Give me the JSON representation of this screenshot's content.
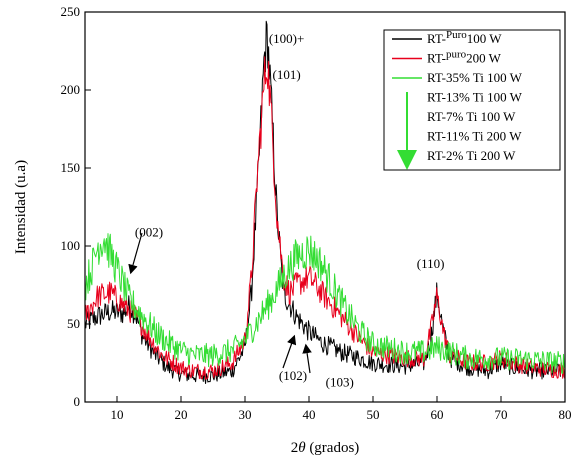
{
  "chart_data": {
    "type": "line",
    "xlabel_prefix": "2",
    "xlabel_theta": "θ",
    "xlabel_suffix": " (grados)",
    "ylabel": "Intensidad (u.a)",
    "xlim": [
      5,
      80
    ],
    "ylim": [
      0,
      250
    ],
    "xticks": [
      10,
      20,
      30,
      40,
      50,
      60,
      70,
      80
    ],
    "yticks": [
      0,
      50,
      100,
      150,
      200,
      250
    ],
    "grid": false,
    "legend_position": "top-right",
    "legend": [
      {
        "prefix": "RT-",
        "sup": "Puro",
        "suffix": "100 W",
        "color": "#000000"
      },
      {
        "prefix": "RT-",
        "sup": "puro",
        "suffix": "200 W",
        "color": "#e8001c"
      },
      {
        "prefix": "RT-35% Ti 100 W",
        "sup": "",
        "suffix": "",
        "color": "#33dd33"
      },
      {
        "prefix": "RT-13% Ti 100 W",
        "sup": "",
        "suffix": "",
        "color": "#33dd33"
      },
      {
        "prefix": "RT-7%   Ti 100 W",
        "sup": "",
        "suffix": "",
        "color": "#33dd33"
      },
      {
        "prefix": "RT-11% Ti 200 W",
        "sup": "",
        "suffix": "",
        "color": "#33dd33"
      },
      {
        "prefix": "RT-2%   Ti 200 W",
        "sup": "",
        "suffix": "",
        "color": "#33dd33"
      }
    ],
    "series": [
      {
        "color": "#000000",
        "noise": 7,
        "x": [
          5,
          7,
          9,
          11,
          12,
          13,
          14,
          16,
          18,
          20,
          22,
          25,
          28,
          30,
          31,
          32,
          33,
          33.5,
          34,
          35,
          36,
          38,
          40,
          42,
          45,
          48,
          50,
          55,
          58,
          59,
          60,
          61,
          62,
          65,
          68,
          70,
          72,
          75,
          80
        ],
        "y": [
          50,
          55,
          58,
          57,
          62,
          55,
          42,
          30,
          22,
          18,
          17,
          17,
          20,
          35,
          70,
          140,
          220,
          235,
          200,
          120,
          70,
          55,
          45,
          38,
          32,
          28,
          25,
          23,
          25,
          40,
          70,
          45,
          28,
          22,
          20,
          25,
          22,
          20,
          20
        ]
      },
      {
        "color": "#e8001c",
        "noise": 7,
        "x": [
          5,
          7,
          9,
          11,
          13,
          15,
          17,
          20,
          22,
          25,
          28,
          30,
          31,
          32,
          33,
          33.5,
          34,
          35,
          36,
          37,
          38,
          40,
          42,
          45,
          48,
          50,
          55,
          58,
          59,
          60,
          61,
          62,
          65,
          68,
          70,
          72,
          75,
          80
        ],
        "y": [
          55,
          68,
          70,
          62,
          55,
          42,
          30,
          22,
          20,
          20,
          25,
          40,
          80,
          150,
          205,
          220,
          190,
          120,
          80,
          70,
          75,
          80,
          70,
          55,
          40,
          32,
          28,
          28,
          45,
          68,
          45,
          30,
          25,
          25,
          28,
          25,
          22,
          20
        ]
      },
      {
        "color": "#33dd33",
        "noise": 9,
        "x": [
          5,
          6,
          7,
          8,
          9,
          10,
          11,
          12,
          14,
          16,
          18,
          20,
          22,
          25,
          28,
          30,
          32,
          34,
          36,
          38,
          40,
          42,
          44,
          46,
          48,
          50,
          55,
          58,
          60,
          62,
          65,
          70,
          75,
          80
        ],
        "y": [
          75,
          85,
          100,
          105,
          95,
          85,
          75,
          65,
          55,
          45,
          38,
          33,
          30,
          30,
          33,
          40,
          52,
          65,
          80,
          93,
          98,
          88,
          72,
          57,
          45,
          37,
          32,
          32,
          35,
          32,
          28,
          28,
          27,
          25
        ]
      }
    ],
    "annotations": [
      {
        "text": "(100)+",
        "x": 36.5,
        "y": 230
      },
      {
        "text": "(101)",
        "x": 36.5,
        "y": 207
      },
      {
        "text": "(002)",
        "x": 15,
        "y": 106
      },
      {
        "text": "(110)",
        "x": 59,
        "y": 86
      },
      {
        "text": "(102)",
        "x": 37.5,
        "y": 14
      },
      {
        "text": "(103)",
        "x": 44.8,
        "y": 10
      }
    ]
  }
}
